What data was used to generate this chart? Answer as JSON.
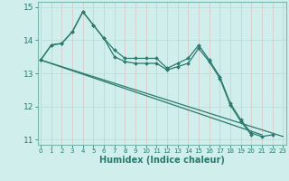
{
  "title": "",
  "xlabel": "Humidex (Indice chaleur)",
  "ylabel": "",
  "background_color": "#d0eeeb",
  "grid_color": "#b8ddd9",
  "line_color": "#2a7a6e",
  "spine_color": "#7ab8b0",
  "x": [
    0,
    1,
    2,
    3,
    4,
    5,
    6,
    7,
    8,
    9,
    10,
    11,
    12,
    13,
    14,
    15,
    16,
    17,
    18,
    19,
    20,
    21,
    22,
    23
  ],
  "line1": [
    13.4,
    13.85,
    13.9,
    14.25,
    14.85,
    14.45,
    14.05,
    13.7,
    13.45,
    13.45,
    13.45,
    13.45,
    13.15,
    13.3,
    13.45,
    13.85,
    13.4,
    12.9,
    12.1,
    11.6,
    11.2,
    11.1,
    11.15,
    null
  ],
  "line2": [
    13.4,
    13.85,
    13.9,
    14.25,
    14.85,
    14.45,
    14.05,
    13.5,
    13.35,
    13.3,
    13.3,
    13.3,
    13.1,
    13.2,
    13.3,
    13.75,
    13.35,
    12.85,
    12.05,
    11.55,
    11.15,
    null,
    null,
    null
  ],
  "line3_x": [
    0,
    23
  ],
  "line3_y": [
    13.4,
    11.1
  ],
  "line4_x": [
    0,
    21
  ],
  "line4_y": [
    13.4,
    11.15
  ],
  "ylim": [
    10.85,
    15.15
  ],
  "xlim": [
    -0.3,
    23.3
  ],
  "yticks": [
    11,
    12,
    13,
    14,
    15
  ],
  "xticks": [
    0,
    1,
    2,
    3,
    4,
    5,
    6,
    7,
    8,
    9,
    10,
    11,
    12,
    13,
    14,
    15,
    16,
    17,
    18,
    19,
    20,
    21,
    22,
    23
  ],
  "marker_size": 2.0,
  "line_width": 0.9
}
